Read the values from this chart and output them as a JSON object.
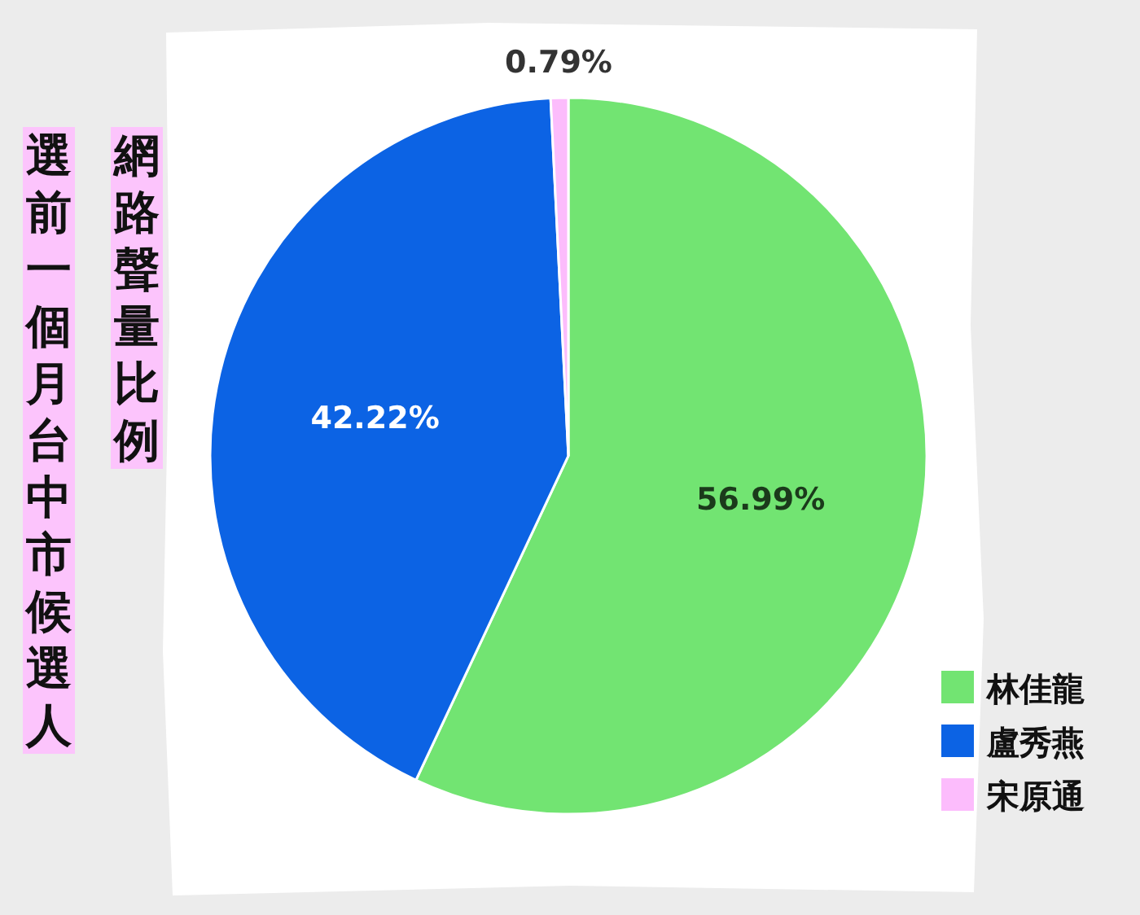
{
  "chart_data": {
    "type": "pie",
    "title": "選前一個月台中市候選人",
    "subtitle": "網路聲量比例",
    "categories": [
      "林佳龍",
      "盧秀燕",
      "宋原通"
    ],
    "values": [
      56.99,
      42.22,
      0.79
    ],
    "colors": [
      "#72e472",
      "#0c63e4",
      "#fcbcfc"
    ],
    "value_labels": [
      "56.99%",
      "42.22%",
      "0.79%"
    ],
    "legend": "bottom right"
  }
}
